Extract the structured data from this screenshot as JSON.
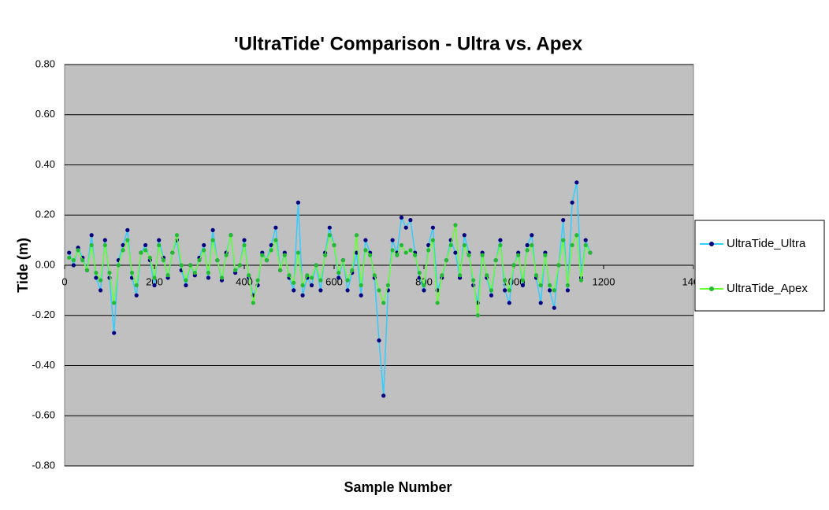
{
  "chart_data": {
    "type": "line",
    "title": "'UltraTide' Comparison - Ultra vs. Apex",
    "x_label": "Sample Number",
    "y_label": "Tide (m)",
    "x": [
      10,
      20,
      30,
      40,
      50,
      60,
      70,
      80,
      90,
      100,
      110,
      120,
      130,
      140,
      150,
      160,
      170,
      180,
      190,
      200,
      210,
      220,
      230,
      240,
      250,
      260,
      270,
      280,
      290,
      300,
      310,
      320,
      330,
      340,
      350,
      360,
      370,
      380,
      390,
      400,
      410,
      420,
      430,
      440,
      450,
      460,
      470,
      480,
      490,
      500,
      510,
      520,
      530,
      540,
      550,
      560,
      570,
      580,
      590,
      600,
      610,
      620,
      630,
      640,
      650,
      660,
      670,
      680,
      690,
      700,
      710,
      720,
      730,
      740,
      750,
      760,
      770,
      780,
      790,
      800,
      810,
      820,
      830,
      840,
      850,
      860,
      870,
      880,
      890,
      900,
      910,
      920,
      930,
      940,
      950,
      960,
      970,
      980,
      990,
      1000,
      1010,
      1020,
      1030,
      1040,
      1050,
      1060,
      1070,
      1080,
      1090,
      1100,
      1110,
      1120,
      1130,
      1140,
      1150,
      1160,
      1170
    ],
    "series": [
      {
        "name": "UltraTide_Ultra",
        "color": "#33ccff",
        "marker_color": "#000080",
        "values": [
          0.05,
          0.0,
          0.07,
          0.03,
          -0.02,
          0.12,
          -0.05,
          -0.1,
          0.1,
          -0.05,
          -0.27,
          0.02,
          0.08,
          0.14,
          -0.05,
          -0.12,
          0.05,
          0.08,
          0.02,
          -0.08,
          0.1,
          0.03,
          -0.05,
          0.05,
          0.1,
          -0.02,
          -0.08,
          0.0,
          -0.04,
          0.03,
          0.08,
          -0.05,
          0.14,
          0.02,
          -0.06,
          0.05,
          0.12,
          -0.03,
          0.0,
          0.1,
          -0.05,
          -0.12,
          -0.08,
          0.05,
          0.02,
          0.08,
          0.15,
          -0.02,
          0.05,
          -0.05,
          -0.1,
          0.25,
          -0.12,
          -0.05,
          -0.08,
          0.0,
          -0.1,
          0.05,
          0.15,
          0.08,
          -0.05,
          0.02,
          -0.1,
          -0.03,
          0.05,
          -0.12,
          0.1,
          0.05,
          -0.05,
          -0.3,
          -0.52,
          -0.1,
          0.1,
          0.05,
          0.19,
          0.15,
          0.18,
          0.05,
          -0.05,
          -0.1,
          0.08,
          0.15,
          -0.1,
          -0.05,
          0.02,
          0.1,
          0.05,
          -0.05,
          0.12,
          0.05,
          -0.08,
          -0.15,
          0.05,
          -0.05,
          -0.12,
          0.02,
          0.1,
          -0.1,
          -0.15,
          0.0,
          0.05,
          -0.08,
          0.08,
          0.12,
          -0.05,
          -0.15,
          0.05,
          -0.1,
          -0.17,
          0.0,
          0.18,
          -0.1,
          0.25,
          0.33,
          -0.05,
          0.1,
          0.05
        ]
      },
      {
        "name": "UltraTide_Apex",
        "color": "#66ff33",
        "marker_color": "#22bb33",
        "values": [
          0.03,
          0.02,
          0.06,
          0.02,
          -0.02,
          0.08,
          -0.03,
          -0.06,
          0.08,
          -0.03,
          -0.15,
          0.0,
          0.06,
          0.1,
          -0.03,
          -0.08,
          0.05,
          0.06,
          0.03,
          -0.05,
          0.08,
          0.02,
          -0.04,
          0.05,
          0.12,
          0.0,
          -0.06,
          0.0,
          -0.03,
          0.02,
          0.06,
          -0.03,
          0.1,
          0.02,
          -0.05,
          0.04,
          0.12,
          -0.02,
          0.0,
          0.08,
          -0.04,
          -0.15,
          -0.06,
          0.04,
          0.02,
          0.06,
          0.1,
          -0.02,
          0.04,
          -0.04,
          -0.07,
          0.05,
          -0.08,
          -0.04,
          -0.05,
          0.0,
          -0.06,
          0.04,
          0.12,
          0.08,
          -0.03,
          0.02,
          -0.06,
          -0.02,
          0.12,
          -0.08,
          0.06,
          0.04,
          -0.04,
          -0.1,
          -0.15,
          -0.08,
          0.06,
          0.04,
          0.08,
          0.05,
          0.06,
          0.04,
          -0.03,
          -0.08,
          0.06,
          0.1,
          -0.15,
          -0.04,
          0.02,
          0.08,
          0.16,
          -0.04,
          0.08,
          0.04,
          -0.06,
          -0.2,
          0.04,
          -0.04,
          -0.1,
          0.02,
          0.08,
          -0.06,
          -0.1,
          0.0,
          0.04,
          -0.06,
          0.06,
          0.08,
          -0.04,
          -0.08,
          0.04,
          -0.08,
          -0.1,
          0.0,
          0.1,
          -0.08,
          0.08,
          0.12,
          -0.06,
          0.08,
          0.05
        ]
      }
    ],
    "xlim": [
      0,
      1400
    ],
    "xticks": [
      0,
      200,
      400,
      600,
      800,
      1000,
      1200,
      1400
    ],
    "ylim": [
      -0.8,
      0.8
    ],
    "yticks": [
      {
        "value": -0.8,
        "label": "-0.80"
      },
      {
        "value": -0.6,
        "label": "-0.60"
      },
      {
        "value": -0.4,
        "label": "-0.40"
      },
      {
        "value": -0.2,
        "label": "-0.20"
      },
      {
        "value": 0,
        "label": "0.00"
      },
      {
        "value": 0.2,
        "label": "0.20"
      },
      {
        "value": 0.4,
        "label": "0.40"
      },
      {
        "value": 0.6,
        "label": "0.60"
      },
      {
        "value": 0.8,
        "label": "0.80"
      }
    ],
    "grid": true,
    "legend": "right"
  }
}
